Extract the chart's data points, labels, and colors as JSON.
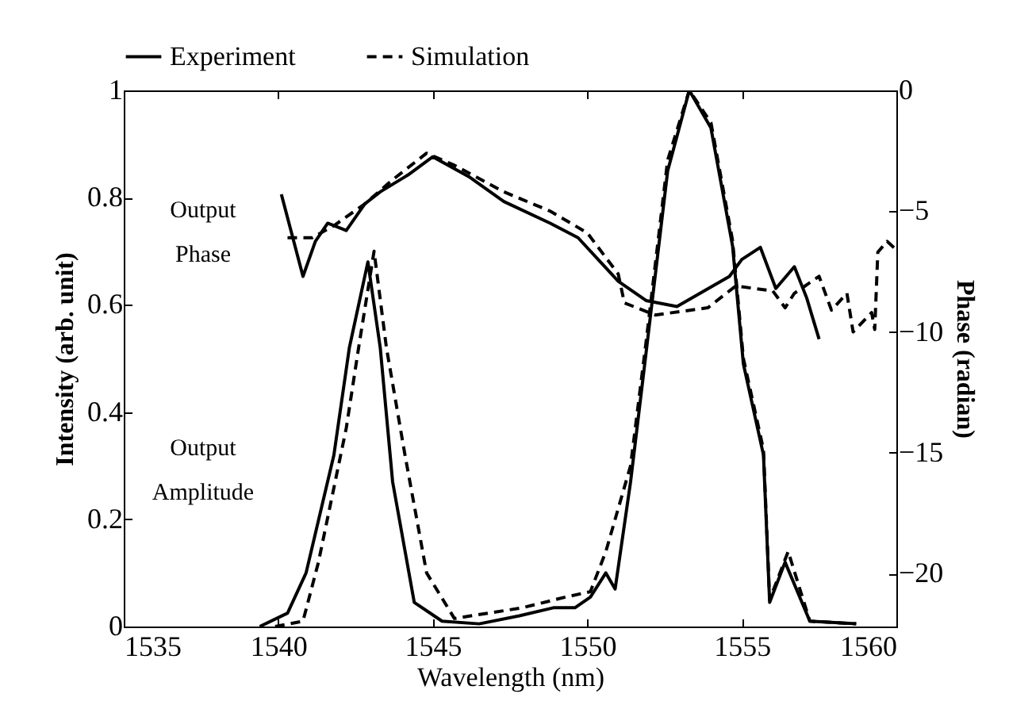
{
  "chart_data": {
    "type": "line",
    "xlabel": "Wavelength (nm)",
    "ylabel": "Intensity (arb. unit)",
    "y2label": "Phase (radian)",
    "xlim": [
      1535,
      1560
    ],
    "xticks": [
      1535,
      1540,
      1545,
      1550,
      1555,
      1560
    ],
    "ylim": [
      0,
      1
    ],
    "yticks": [
      0,
      0.2,
      0.4,
      0.6,
      0.8,
      1
    ],
    "y2lim": [
      -22.2,
      0
    ],
    "y2ticks": [
      0,
      -5,
      -10,
      -15,
      -20
    ],
    "legend": "top",
    "grid": false,
    "marker": "none",
    "annotations": [
      "Output Phase",
      "Output Amplitude"
    ],
    "series": [
      {
        "name": "Experiment",
        "color": "#000000",
        "line_style": "solid",
        "x": [
          1539.4,
          1540.3,
          1540.9,
          1541.8,
          1542.3,
          1542.9,
          1543.3,
          1543.7,
          1544.4,
          1545.3,
          1546.5,
          1547.8,
          1548.9,
          1549.6,
          1550.1,
          1550.6,
          1550.9,
          1551.4,
          1551.9,
          1552.6,
          1553.3,
          1554,
          1554.7,
          1555.05,
          1555.7,
          1555.9,
          1556.4,
          1557.2,
          1558.7
        ],
        "values": [
          0,
          0.025,
          0.1,
          0.32,
          0.52,
          0.68,
          0.52,
          0.27,
          0.045,
          0.01,
          0.005,
          0.02,
          0.035,
          0.035,
          0.055,
          0.1,
          0.07,
          0.27,
          0.51,
          0.85,
          1,
          0.93,
          0.71,
          0.49,
          0.32,
          0.045,
          0.12,
          0.01,
          0.005
        ]
      },
      {
        "name": "Simulation",
        "color": "#000000",
        "line_style": "dashed",
        "x": [
          1539.9,
          1540.8,
          1541.3,
          1542.2,
          1542.6,
          1543.1,
          1543.5,
          1544.1,
          1544.8,
          1545.7,
          1547.9,
          1549.3,
          1550.1,
          1550.6,
          1551.4,
          1551.9,
          1552.6,
          1553.3,
          1554,
          1554.7,
          1555.05,
          1555.7,
          1555.9,
          1556.5,
          1557.2,
          1558.7
        ],
        "values": [
          0,
          0.01,
          0.12,
          0.37,
          0.52,
          0.7,
          0.52,
          0.32,
          0.1,
          0.015,
          0.035,
          0.055,
          0.065,
          0.14,
          0.3,
          0.53,
          0.87,
          1,
          0.94,
          0.72,
          0.5,
          0.33,
          0.05,
          0.14,
          0.01,
          0.005
        ]
      },
      {
        "color": "#000000",
        "line_style": "solid",
        "axis": "y2",
        "x": [
          1540.1,
          1540.8,
          1541.2,
          1541.6,
          1542.2,
          1542.8,
          1543.3,
          1544.2,
          1545,
          1546.2,
          1547.3,
          1548.8,
          1549.7,
          1551,
          1551.9,
          1552.9,
          1554.6,
          1555,
          1555.6,
          1556.1,
          1556.7,
          1557.1,
          1557.5
        ],
        "values": [
          -4.3,
          -7.7,
          -6.25,
          -5.5,
          -5.8,
          -4.7,
          -4.2,
          -3.5,
          -2.75,
          -3.6,
          -4.6,
          -5.5,
          -6.1,
          -7.9,
          -8.7,
          -8.95,
          -7.7,
          -7,
          -6.5,
          -8.2,
          -7.3,
          -8.6,
          -10.3
        ]
      },
      {
        "color": "#000000",
        "line_style": "dashed",
        "axis": "y2",
        "x": [
          1540.3,
          1541.1,
          1541.8,
          1542.8,
          1543.7,
          1544.8,
          1545.7,
          1547.3,
          1548.8,
          1550,
          1551,
          1551.2,
          1552.2,
          1553.9,
          1554.8,
          1556,
          1556.4,
          1556.7,
          1557.5,
          1557.9,
          1558.4,
          1558.6,
          1559.2,
          1559.3,
          1559.4,
          1559.7,
          1560
        ],
        "values": [
          -6.1,
          -6.1,
          -5.6,
          -4.7,
          -3.7,
          -2.6,
          -3.1,
          -4.2,
          -5,
          -5.9,
          -7.6,
          -8.8,
          -9.3,
          -9,
          -8.1,
          -8.3,
          -9,
          -8.4,
          -7.7,
          -9.1,
          -8.4,
          -10,
          -9.2,
          -9.9,
          -6.7,
          -6.25,
          -6.6
        ]
      }
    ]
  }
}
